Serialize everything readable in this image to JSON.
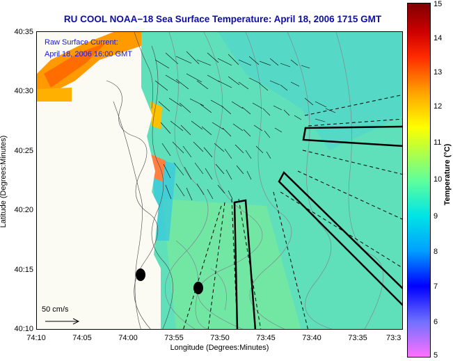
{
  "title": "RU COOL  NOAA−18  Sea Surface Temperature:  April 18, 2006 1715 GMT",
  "current_note": {
    "line1": "Raw Surface Current:",
    "line2": "April 18, 2006 16:00 GMT"
  },
  "scale_label": "50 cm/s",
  "x_axis": {
    "label": "Longitude (Degrees:Minutes)",
    "ticks": [
      "74:10",
      "74:05",
      "74:00",
      "73:55",
      "73:50",
      "73:45",
      "73:40",
      "73:35",
      "73:3"
    ]
  },
  "y_axis": {
    "label": "Latitude (Degrees:Minutes)",
    "ticks": [
      "40:35",
      "40:30",
      "40:25",
      "40:20",
      "40:15",
      "40:10"
    ]
  },
  "colorbar": {
    "label": "Temperature (°C)",
    "ticks": [
      "15",
      "14",
      "13",
      "12",
      "11",
      "10",
      "9",
      "8",
      "7",
      "6",
      "5"
    ],
    "min": 5,
    "max": 15
  },
  "colors": {
    "title": "#0d0da8",
    "note": "#1a1ad0",
    "ocean": "#5fe0bb",
    "land": "#fbfaf3",
    "warm_patch": "#ff9a00"
  }
}
